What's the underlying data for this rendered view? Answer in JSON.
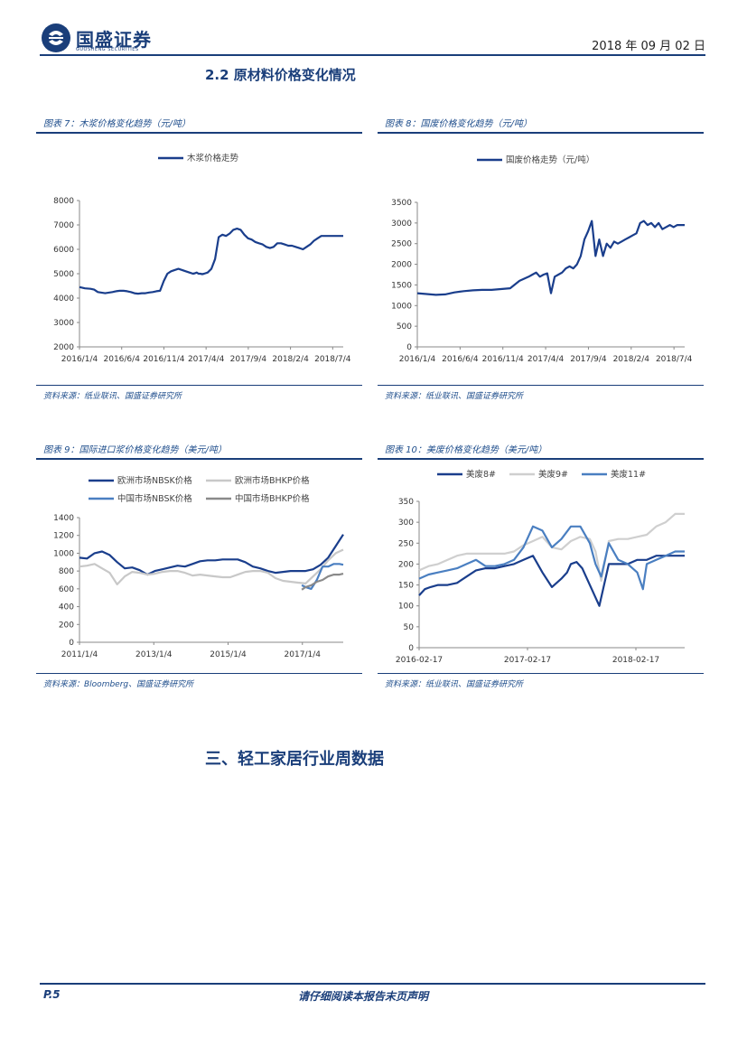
{
  "header": {
    "brand": "国盛证券",
    "brand_sub": "GUOSHENG SECURITIES",
    "date": "2018 年 09 月 02 日"
  },
  "section_title": "2.2 原材料价格变化情况",
  "figures": [
    {
      "title": "图表 7：木浆价格变化趋势（元/吨）",
      "source": "资料来源：纸业联讯、国盛证券研究所"
    },
    {
      "title": "图表 8：国废价格变化趋势（元/吨）",
      "source": "资料来源：纸业联讯、国盛证券研究所"
    },
    {
      "title": "图表 9：国际进口浆价格变化趋势（美元/吨）",
      "source": "资料来源：Bloomberg、国盛证券研究所"
    },
    {
      "title": "图表 10：美废价格变化趋势（美元/吨）",
      "source": "资料来源：纸业联讯、国盛证券研究所"
    }
  ],
  "chart_data": [
    {
      "type": "line",
      "legend": [
        "木浆价格走势"
      ],
      "categories": [
        "2016/1/4",
        "2016/6/4",
        "2016/11/4",
        "2017/4/4",
        "2017/9/4",
        "2018/2/4",
        "2018/7/4"
      ],
      "ylim": [
        2000,
        8000
      ],
      "yticks": [
        2000,
        3000,
        4000,
        5000,
        6000,
        7000,
        8000
      ],
      "series": [
        {
          "name": "木浆价格走势",
          "color": "#1a3e8c",
          "x": [
            0,
            0.3,
            0.6,
            0.8,
            1.0,
            1.4,
            1.8,
            2.0,
            2.2,
            2.4,
            2.6,
            2.8,
            3.0,
            3.2,
            3.4,
            3.6,
            3.8,
            4.0,
            4.2,
            4.4,
            4.6,
            4.8,
            5.0,
            5.2,
            5.4,
            5.6,
            5.8,
            6.0,
            6.2,
            6.3,
            6.4,
            6.5,
            6.6,
            6.7,
            6.8,
            7.0,
            7.2,
            7.4,
            7.6,
            7.8,
            8.0,
            8.2,
            8.4,
            8.6,
            8.8,
            9.0,
            9.2,
            9.4,
            9.6,
            9.8,
            10.0,
            10.2,
            10.4,
            10.6,
            10.8,
            11.0,
            11.2,
            11.4,
            11.6,
            11.8,
            12.0,
            12.2,
            12.4,
            12.6,
            12.8,
            13.0,
            13.2,
            13.4,
            13.6,
            13.8,
            14.0,
            14.2,
            14.4
          ],
          "values": [
            4450,
            4400,
            4380,
            4350,
            4250,
            4200,
            4250,
            4280,
            4300,
            4300,
            4280,
            4250,
            4200,
            4180,
            4200,
            4200,
            4230,
            4250,
            4280,
            4300,
            4700,
            5000,
            5100,
            5150,
            5200,
            5150,
            5100,
            5050,
            5000,
            5020,
            5050,
            5000,
            5000,
            4980,
            5000,
            5050,
            5200,
            5600,
            6500,
            6600,
            6550,
            6650,
            6800,
            6850,
            6800,
            6600,
            6450,
            6400,
            6300,
            6250,
            6200,
            6100,
            6050,
            6100,
            6250,
            6250,
            6200,
            6150,
            6150,
            6100,
            6050,
            6000,
            6100,
            6200,
            6350,
            6450,
            6550,
            6550,
            6550,
            6550,
            6550,
            6550,
            6550
          ]
        }
      ]
    },
    {
      "type": "line",
      "legend": [
        "国废价格走势（元/吨）"
      ],
      "categories": [
        "2016/1/4",
        "2016/6/4",
        "2016/11/4",
        "2017/4/4",
        "2017/9/4",
        "2018/2/4",
        "2018/7/4"
      ],
      "ylim": [
        0,
        3500
      ],
      "yticks": [
        0,
        500,
        1000,
        1500,
        2000,
        2500,
        3000,
        3500
      ],
      "series": [
        {
          "name": "国废价格走势",
          "color": "#1a3e8c",
          "x": [
            0,
            0.5,
            1.0,
            1.5,
            2.0,
            2.5,
            3.0,
            3.5,
            4.0,
            4.5,
            5.0,
            5.5,
            6.0,
            6.2,
            6.4,
            6.6,
            6.8,
            7.0,
            7.2,
            7.4,
            7.6,
            7.8,
            8.0,
            8.2,
            8.4,
            8.6,
            8.8,
            9.0,
            9.2,
            9.4,
            9.6,
            9.8,
            10.0,
            10.2,
            10.4,
            10.6,
            10.8,
            11.0,
            11.2,
            11.4,
            11.6,
            11.8,
            12.0,
            12.2,
            12.4,
            12.6,
            12.8,
            13.0,
            13.2,
            13.4,
            13.6,
            13.8,
            14.0,
            14.2,
            14.4
          ],
          "values": [
            1300,
            1280,
            1260,
            1270,
            1320,
            1350,
            1370,
            1380,
            1380,
            1400,
            1420,
            1600,
            1700,
            1750,
            1800,
            1700,
            1750,
            1780,
            1300,
            1700,
            1750,
            1800,
            1900,
            1950,
            1900,
            2000,
            2200,
            2600,
            2800,
            3050,
            2200,
            2600,
            2200,
            2500,
            2400,
            2550,
            2500,
            2550,
            2600,
            2650,
            2700,
            2750,
            3000,
            3050,
            2950,
            3000,
            2900,
            3000,
            2850,
            2900,
            2950,
            2900,
            2950,
            2950,
            2950
          ]
        }
      ]
    },
    {
      "type": "line",
      "legend": [
        "欧洲市场NBSK价格",
        "欧洲市场BHKP价格",
        "中国市场NBSK价格",
        "中国市场BHKP价格"
      ],
      "categories": [
        "2011/1/4",
        "2013/1/4",
        "2015/1/4",
        "2017/1/4"
      ],
      "ylim": [
        0,
        1400
      ],
      "yticks": [
        0,
        200,
        400,
        600,
        800,
        1000,
        1200,
        1400
      ],
      "series": [
        {
          "name": "欧洲市场NBSK价格",
          "color": "#1a3e8c",
          "x": [
            0,
            0.4,
            0.8,
            1.2,
            1.6,
            2.0,
            2.4,
            2.8,
            3.2,
            3.6,
            4.0,
            4.4,
            4.8,
            5.2,
            5.6,
            6.0,
            6.4,
            6.8,
            7.2,
            7.6,
            8.0,
            8.4,
            8.8,
            9.2,
            9.6,
            10.0,
            10.4,
            10.8,
            11.2,
            11.6,
            12.0,
            12.4,
            12.8,
            13.2,
            13.6,
            14.0
          ],
          "values": [
            950,
            940,
            1000,
            1020,
            980,
            900,
            830,
            840,
            810,
            760,
            800,
            820,
            840,
            860,
            850,
            880,
            910,
            920,
            920,
            930,
            930,
            930,
            900,
            850,
            830,
            800,
            780,
            790,
            800,
            800,
            800,
            820,
            870,
            950,
            1080,
            1210
          ]
        },
        {
          "name": "欧洲市场BHKP价格",
          "color": "#c8c8c8",
          "x": [
            0,
            0.4,
            0.8,
            1.2,
            1.6,
            2.0,
            2.4,
            2.8,
            3.2,
            3.6,
            4.0,
            4.4,
            4.8,
            5.2,
            5.6,
            6.0,
            6.4,
            6.8,
            7.2,
            7.6,
            8.0,
            8.4,
            8.8,
            9.2,
            9.6,
            10.0,
            10.4,
            10.8,
            11.2,
            11.6,
            12.0,
            12.4,
            12.8,
            13.2,
            13.6,
            14.0
          ],
          "values": [
            850,
            860,
            880,
            830,
            780,
            650,
            740,
            790,
            780,
            760,
            770,
            790,
            800,
            800,
            780,
            750,
            760,
            750,
            740,
            730,
            730,
            760,
            790,
            800,
            800,
            780,
            720,
            690,
            680,
            670,
            660,
            740,
            820,
            920,
            1000,
            1040
          ]
        },
        {
          "name": "中国市场NBSK价格",
          "color": "#4a7fc1",
          "x": [
            11.8,
            12.0,
            12.3,
            12.6,
            12.9,
            13.2,
            13.5,
            13.8,
            14.0
          ],
          "values": [
            640,
            620,
            600,
            700,
            850,
            850,
            880,
            880,
            870
          ]
        },
        {
          "name": "中国市场BHKP价格",
          "color": "#8a8a8a",
          "x": [
            11.8,
            12.0,
            12.3,
            12.6,
            12.9,
            13.2,
            13.5,
            13.8,
            14.0
          ],
          "values": [
            590,
            620,
            640,
            680,
            700,
            740,
            760,
            760,
            770
          ]
        }
      ]
    },
    {
      "type": "line",
      "legend": [
        "美废8#",
        "美废9#",
        "美废11#"
      ],
      "categories": [
        "2016-02-17",
        "2017-02-17",
        "2018-02-17"
      ],
      "ylim": [
        0,
        350
      ],
      "yticks": [
        0,
        50,
        100,
        150,
        200,
        250,
        300,
        350
      ],
      "series": [
        {
          "name": "美废8#",
          "color": "#1a3e8c",
          "x": [
            0,
            0.3,
            0.6,
            1.0,
            1.5,
            2.0,
            2.5,
            3.0,
            3.5,
            4.0,
            4.5,
            5.0,
            5.5,
            6.0,
            6.5,
            7.0,
            7.5,
            7.8,
            8.0,
            8.3,
            8.6,
            9.0,
            9.5,
            10.0,
            10.3,
            10.6,
            10.8,
            11.0,
            11.5,
            12.0,
            12.5,
            13.0,
            13.5,
            14.0
          ],
          "values": [
            125,
            140,
            145,
            150,
            150,
            155,
            170,
            185,
            190,
            190,
            195,
            200,
            210,
            220,
            180,
            145,
            165,
            180,
            200,
            205,
            190,
            150,
            100,
            200,
            200,
            200,
            200,
            200,
            210,
            210,
            220,
            220,
            220,
            220
          ]
        },
        {
          "name": "美废9#",
          "color": "#cfcfcf",
          "x": [
            0,
            0.5,
            1.0,
            1.5,
            2.0,
            2.5,
            3.0,
            3.5,
            4.0,
            4.5,
            5.0,
            5.5,
            6.0,
            6.5,
            7.0,
            7.5,
            8.0,
            8.5,
            9.0,
            9.3,
            9.6,
            10.0,
            10.5,
            11.0,
            11.5,
            12.0,
            12.5,
            13.0,
            13.5,
            14.0
          ],
          "values": [
            185,
            195,
            200,
            210,
            220,
            225,
            225,
            225,
            225,
            225,
            230,
            245,
            255,
            265,
            240,
            235,
            255,
            265,
            260,
            230,
            160,
            255,
            260,
            260,
            265,
            270,
            290,
            300,
            320,
            320
          ]
        },
        {
          "name": "美废11#",
          "color": "#4a7fc1",
          "x": [
            0,
            0.5,
            1.0,
            1.5,
            2.0,
            2.5,
            3.0,
            3.5,
            4.0,
            4.5,
            5.0,
            5.5,
            6.0,
            6.5,
            7.0,
            7.5,
            8.0,
            8.5,
            9.0,
            9.3,
            9.6,
            10.0,
            10.5,
            11.0,
            11.5,
            11.8,
            12.0,
            12.5,
            13.0,
            13.5,
            14.0
          ],
          "values": [
            165,
            175,
            180,
            185,
            190,
            200,
            210,
            195,
            195,
            200,
            210,
            240,
            290,
            280,
            240,
            260,
            290,
            290,
            250,
            200,
            170,
            250,
            210,
            200,
            180,
            140,
            200,
            210,
            220,
            230,
            230
          ]
        }
      ]
    }
  ],
  "section3_title": "三、轻工家居行业周数据",
  "footer": {
    "page": "P.5",
    "note": "请仔细阅读本报告末页声明"
  }
}
